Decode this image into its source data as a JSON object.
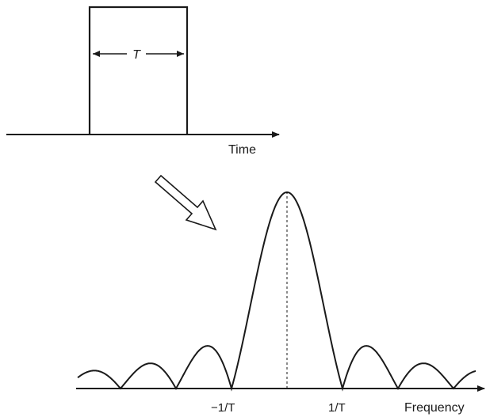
{
  "pulse": {
    "width_label": "T",
    "axis_label": "Time"
  },
  "spectrum": {
    "tick_neg": "−1/T",
    "tick_pos": "1/T",
    "axis_label": "Frequency"
  }
}
